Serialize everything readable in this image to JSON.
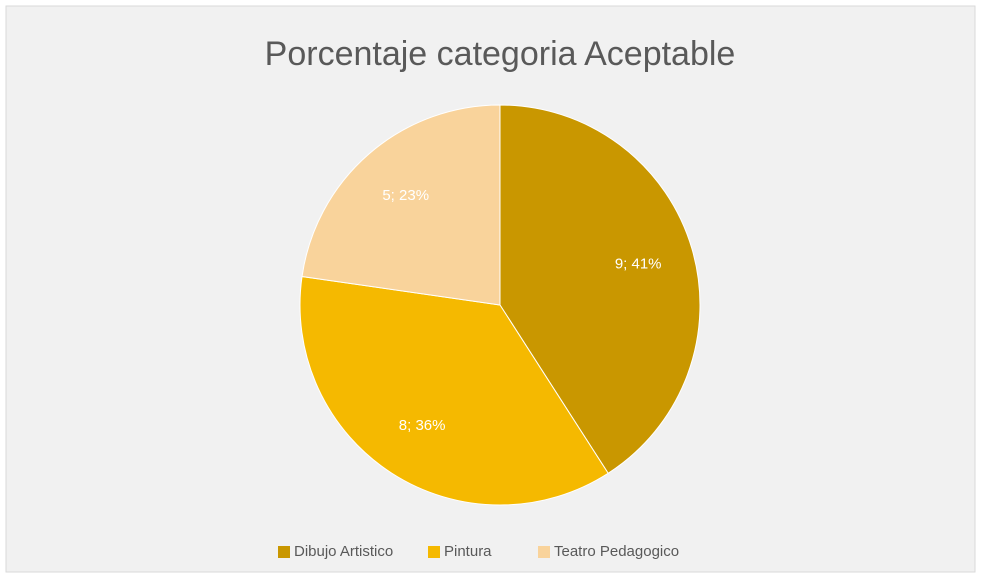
{
  "chart_data": {
    "type": "pie",
    "title": "Porcentaje categoria Aceptable",
    "categories": [
      "Dibujo Artistico",
      "Pintura",
      "Teatro Pedagogico"
    ],
    "values": [
      9,
      8,
      5
    ],
    "value_labels": [
      "9; 41%",
      "8; 36%",
      "5; 23%"
    ],
    "colors": [
      "#c99700",
      "#f5b900",
      "#f9d39b"
    ],
    "legend": "bottom"
  }
}
